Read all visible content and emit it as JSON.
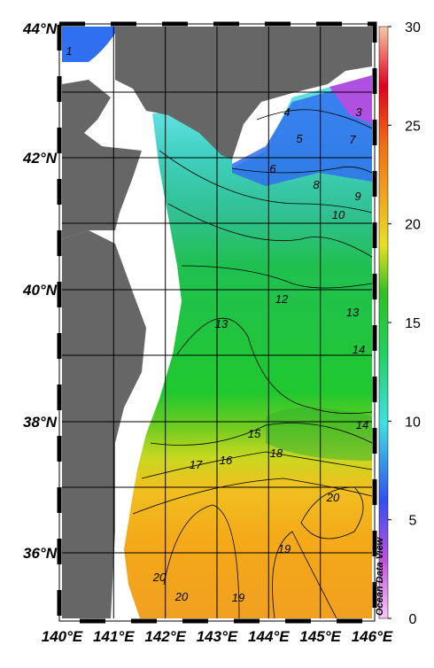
{
  "map": {
    "lat_labels": [
      "44°N",
      "42°N",
      "40°N",
      "38°N",
      "36°N"
    ],
    "lon_labels": [
      "140°E",
      "141°E",
      "142°E",
      "143°E",
      "144°E",
      "145°E",
      "146°E"
    ],
    "colorbar_ticks": [
      0,
      5,
      10,
      15,
      20,
      25,
      30
    ],
    "contour_labels": [
      "1",
      "4",
      "3",
      "5",
      "7",
      "6",
      "8",
      "9",
      "10",
      "12",
      "13",
      "13",
      "14",
      "14",
      "15",
      "16",
      "17",
      "18",
      "20",
      "20",
      "20",
      "19",
      "19"
    ],
    "watermark": "Ocean Data View"
  }
}
